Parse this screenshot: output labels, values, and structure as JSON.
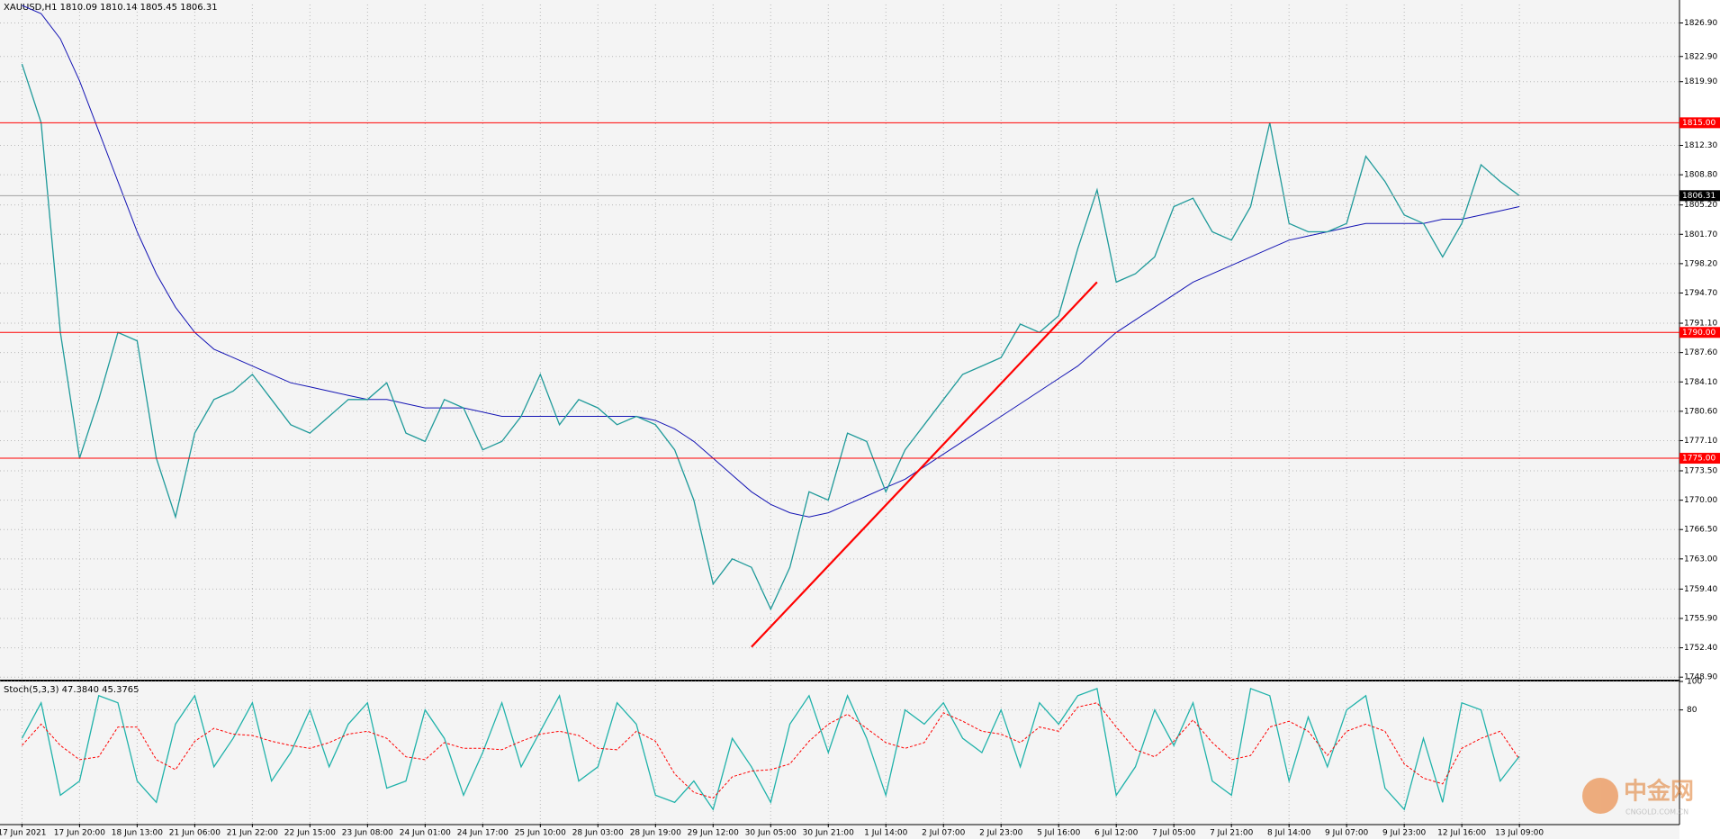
{
  "chart_data": [
    {
      "type": "line",
      "title": "XAUUSD,H1  1810.09 1810.14 1805.45 1806.31",
      "categories": [
        "17 Jun 2021",
        null,
        null,
        "17 Jun 20:00",
        null,
        null,
        "18 Jun 13:00",
        null,
        null,
        "21 Jun 06:00",
        null,
        null,
        "21 Jun 22:00",
        null,
        null,
        "22 Jun 15:00",
        null,
        null,
        "23 Jun 08:00",
        null,
        null,
        "24 Jun 01:00",
        null,
        null,
        "24 Jun 17:00",
        null,
        null,
        "25 Jun 10:00",
        null,
        null,
        "28 Jun 03:00",
        null,
        null,
        "28 Jun 19:00",
        null,
        null,
        "29 Jun 12:00",
        null,
        null,
        "30 Jun 05:00",
        null,
        null,
        "30 Jun 21:00",
        null,
        null,
        "1 Jul 14:00",
        null,
        null,
        "2 Jul 07:00",
        null,
        null,
        "2 Jul 23:00",
        null,
        null,
        "5 Jul 16:00",
        null,
        null,
        "6 Jul 12:00",
        null,
        null,
        "7 Jul 05:00",
        null,
        null,
        "7 Jul 21:00",
        null,
        null,
        "8 Jul 14:00",
        null,
        null,
        "9 Jul 07:00",
        null,
        null,
        "9 Jul 23:00",
        null,
        null,
        "12 Jul 16:00",
        null,
        null,
        "13 Jul 09:00"
      ],
      "series": [
        {
          "color": "#1f9a9a",
          "values": [
            1822,
            1815,
            1790,
            1775,
            1782,
            1790,
            1789,
            1775,
            1768,
            1778,
            1782,
            1783,
            1785,
            1782,
            1779,
            1778,
            1780,
            1782,
            1782,
            1784,
            1778,
            1777,
            1782,
            1781,
            1776,
            1777,
            1780,
            1785,
            1779,
            1782,
            1781,
            1779,
            1780,
            1779,
            1776,
            1770,
            1760,
            1763,
            1762,
            1757,
            1762,
            1771,
            1770,
            1778,
            1777,
            1771,
            1776,
            1779,
            1782,
            1785,
            1786,
            1787,
            1791,
            1790,
            1792,
            1800,
            1807,
            1796,
            1797,
            1799,
            1805,
            1806,
            1802,
            1801,
            1805,
            1815,
            1803,
            1802,
            1802,
            1803,
            1811,
            1808,
            1804,
            1803,
            1799,
            1803,
            1810,
            1808,
            1806.31
          ]
        }
      ],
      "moving_average": {
        "color": "#1414b4",
        "values": [
          1829,
          1828,
          1825,
          1820,
          1814,
          1808,
          1802,
          1797,
          1793,
          1790,
          1788,
          1787,
          1786,
          1785,
          1784,
          1783.5,
          1783,
          1782.5,
          1782,
          1782,
          1781.5,
          1781,
          1781,
          1781,
          1780.5,
          1780,
          1780,
          1780,
          1780,
          1780,
          1780,
          1780,
          1780,
          1779.5,
          1778.5,
          1777,
          1775,
          1773,
          1771,
          1769.5,
          1768.5,
          1768,
          1768.5,
          1769.5,
          1770.5,
          1771.5,
          1772.5,
          1774,
          1775.5,
          1777,
          1778.5,
          1780,
          1781.5,
          1783,
          1784.5,
          1786,
          1788,
          1790,
          1791.5,
          1793,
          1794.5,
          1796,
          1797,
          1798,
          1799,
          1800,
          1801,
          1801.5,
          1802,
          1802.5,
          1803,
          1803,
          1803,
          1803,
          1803.5,
          1803.5,
          1804,
          1804.5,
          1805
        ]
      },
      "ylim": [
        1748.6,
        1829.1
      ],
      "yticks": [
        {
          "value": 1826.9,
          "label": "1826.90"
        },
        {
          "value": 1822.9,
          "label": "1822.90"
        },
        {
          "value": 1819.9,
          "label": "1819.90"
        },
        {
          "value": 1812.3,
          "label": "1812.30"
        },
        {
          "value": 1808.8,
          "label": "1808.80"
        },
        {
          "value": 1805.2,
          "label": "1805.20"
        },
        {
          "value": 1801.7,
          "label": "1801.70"
        },
        {
          "value": 1798.2,
          "label": "1798.20"
        },
        {
          "value": 1794.7,
          "label": "1794.70"
        },
        {
          "value": 1791.1,
          "label": "1791.10"
        },
        {
          "value": 1787.6,
          "label": "1787.60"
        },
        {
          "value": 1784.1,
          "label": "1784.10"
        },
        {
          "value": 1780.6,
          "label": "1780.60"
        },
        {
          "value": 1777.1,
          "label": "1777.10"
        },
        {
          "value": 1773.5,
          "label": "1773.50"
        },
        {
          "value": 1770,
          "label": "1770.00"
        },
        {
          "value": 1766.5,
          "label": "1766.50"
        },
        {
          "value": 1763,
          "label": "1763.00"
        },
        {
          "value": 1759.4,
          "label": "1759.40"
        },
        {
          "value": 1755.9,
          "label": "1755.90"
        },
        {
          "value": 1752.4,
          "label": "1752.40"
        },
        {
          "value": 1748.9,
          "label": "1748.90"
        }
      ],
      "levels": [
        {
          "value": 1815,
          "label": "1815.00"
        },
        {
          "value": 1790,
          "label": "1790.00"
        },
        {
          "value": 1775,
          "label": "1775.00"
        }
      ],
      "level_color": "#ff0000",
      "last_price": {
        "value": 1806.31,
        "label": "1806.31"
      },
      "trendline": {
        "x": [
          38,
          56
        ],
        "values": [
          1752.5,
          1796
        ],
        "color": "#ff0000"
      },
      "grid": true
    },
    {
      "type": "line",
      "title": "Stoch(5,3,3) 47.3840 45.3765",
      "series": [
        {
          "color": "#20b2aa",
          "values": [
            60,
            85,
            20,
            30,
            90,
            85,
            30,
            15,
            70,
            90,
            40,
            60,
            85,
            30,
            50,
            80,
            40,
            70,
            85,
            25,
            30,
            80,
            60,
            20,
            50,
            85,
            40,
            65,
            90,
            30,
            40,
            85,
            70,
            20,
            15,
            30,
            10,
            60,
            40,
            15,
            70,
            90,
            50,
            90,
            60,
            20,
            80,
            70,
            85,
            60,
            50,
            80,
            40,
            85,
            70,
            90,
            95,
            20,
            40,
            80,
            55,
            85,
            30,
            20,
            95,
            90,
            30,
            75,
            40,
            80,
            90,
            25,
            10,
            60,
            15,
            85,
            80,
            30,
            47.384
          ]
        },
        {
          "color": "#ff0000",
          "dashed": true,
          "values": [
            55,
            70,
            55,
            45,
            47,
            68,
            68,
            45,
            38,
            58,
            67,
            63,
            62,
            58,
            55,
            53,
            57,
            63,
            65,
            60,
            47,
            45,
            57,
            53,
            53,
            52,
            58,
            63,
            65,
            62,
            53,
            52,
            65,
            58,
            35,
            22,
            18,
            33,
            37,
            38,
            42,
            58,
            70,
            77,
            67,
            57,
            53,
            57,
            78,
            72,
            65,
            63,
            57,
            68,
            65,
            82,
            85,
            68,
            52,
            47,
            58,
            73,
            57,
            45,
            48,
            68,
            72,
            65,
            48,
            65,
            70,
            65,
            42,
            32,
            28,
            53,
            60,
            65,
            45.3765
          ]
        }
      ],
      "ylim": [
        0,
        100
      ],
      "yticks": [
        100,
        80
      ],
      "grid": true
    }
  ],
  "watermark": {
    "logo": "中金网",
    "site": "CNGOLD.COM.CN"
  }
}
